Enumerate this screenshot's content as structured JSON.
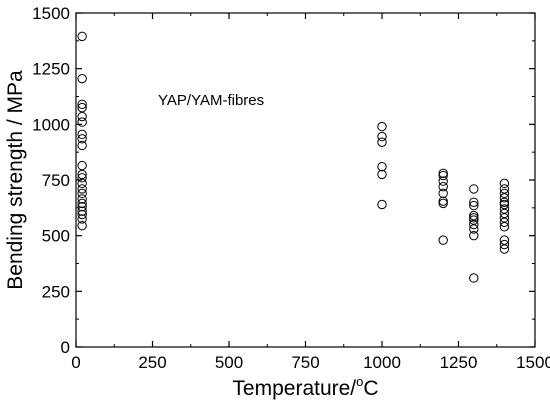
{
  "chart_data": {
    "type": "scatter",
    "title": "",
    "annotation": "YAP/YAM-fibres",
    "ylabel": "Bending strength / MPa",
    "xlabel_main": "Temperature/",
    "xlabel_sup": "o",
    "xlabel_end": "C",
    "xlim": [
      0,
      1500
    ],
    "ylim": [
      0,
      1500
    ],
    "x_ticks": [
      0,
      250,
      500,
      750,
      1000,
      1250,
      1500
    ],
    "y_ticks": [
      0,
      250,
      500,
      750,
      1000,
      1250,
      1500
    ],
    "x_tick_labels": [
      "0",
      "250",
      "500",
      "750",
      "1000",
      "1250",
      "1500"
    ],
    "y_tick_labels": [
      "0",
      "250",
      "500",
      "750",
      "1000",
      "1250",
      "1500"
    ],
    "grid": false,
    "marker": "open-circle",
    "series": [
      {
        "points": [
          [
            20,
            1395
          ],
          [
            20,
            1205
          ],
          [
            20,
            1090
          ],
          [
            20,
            1075
          ],
          [
            20,
            1035
          ],
          [
            20,
            1010
          ],
          [
            20,
            955
          ],
          [
            20,
            935
          ],
          [
            20,
            905
          ],
          [
            20,
            815
          ],
          [
            20,
            775
          ],
          [
            20,
            760
          ],
          [
            20,
            735
          ],
          [
            20,
            710
          ],
          [
            20,
            690
          ],
          [
            20,
            665
          ],
          [
            20,
            645
          ],
          [
            20,
            630
          ],
          [
            20,
            610
          ],
          [
            20,
            595
          ],
          [
            20,
            575
          ],
          [
            20,
            545
          ],
          [
            1000,
            990
          ],
          [
            1000,
            945
          ],
          [
            1000,
            920
          ],
          [
            1000,
            810
          ],
          [
            1000,
            775
          ],
          [
            1000,
            640
          ],
          [
            1200,
            780
          ],
          [
            1200,
            770
          ],
          [
            1200,
            745
          ],
          [
            1200,
            720
          ],
          [
            1200,
            690
          ],
          [
            1200,
            655
          ],
          [
            1200,
            645
          ],
          [
            1200,
            480
          ],
          [
            1300,
            710
          ],
          [
            1300,
            650
          ],
          [
            1300,
            635
          ],
          [
            1300,
            590
          ],
          [
            1300,
            580
          ],
          [
            1300,
            570
          ],
          [
            1300,
            550
          ],
          [
            1300,
            530
          ],
          [
            1300,
            500
          ],
          [
            1300,
            310
          ],
          [
            1400,
            735
          ],
          [
            1400,
            710
          ],
          [
            1400,
            690
          ],
          [
            1400,
            670
          ],
          [
            1400,
            650
          ],
          [
            1400,
            640
          ],
          [
            1400,
            620
          ],
          [
            1400,
            600
          ],
          [
            1400,
            580
          ],
          [
            1400,
            560
          ],
          [
            1400,
            540
          ],
          [
            1400,
            480
          ],
          [
            1400,
            460
          ],
          [
            1400,
            440
          ]
        ]
      }
    ]
  }
}
